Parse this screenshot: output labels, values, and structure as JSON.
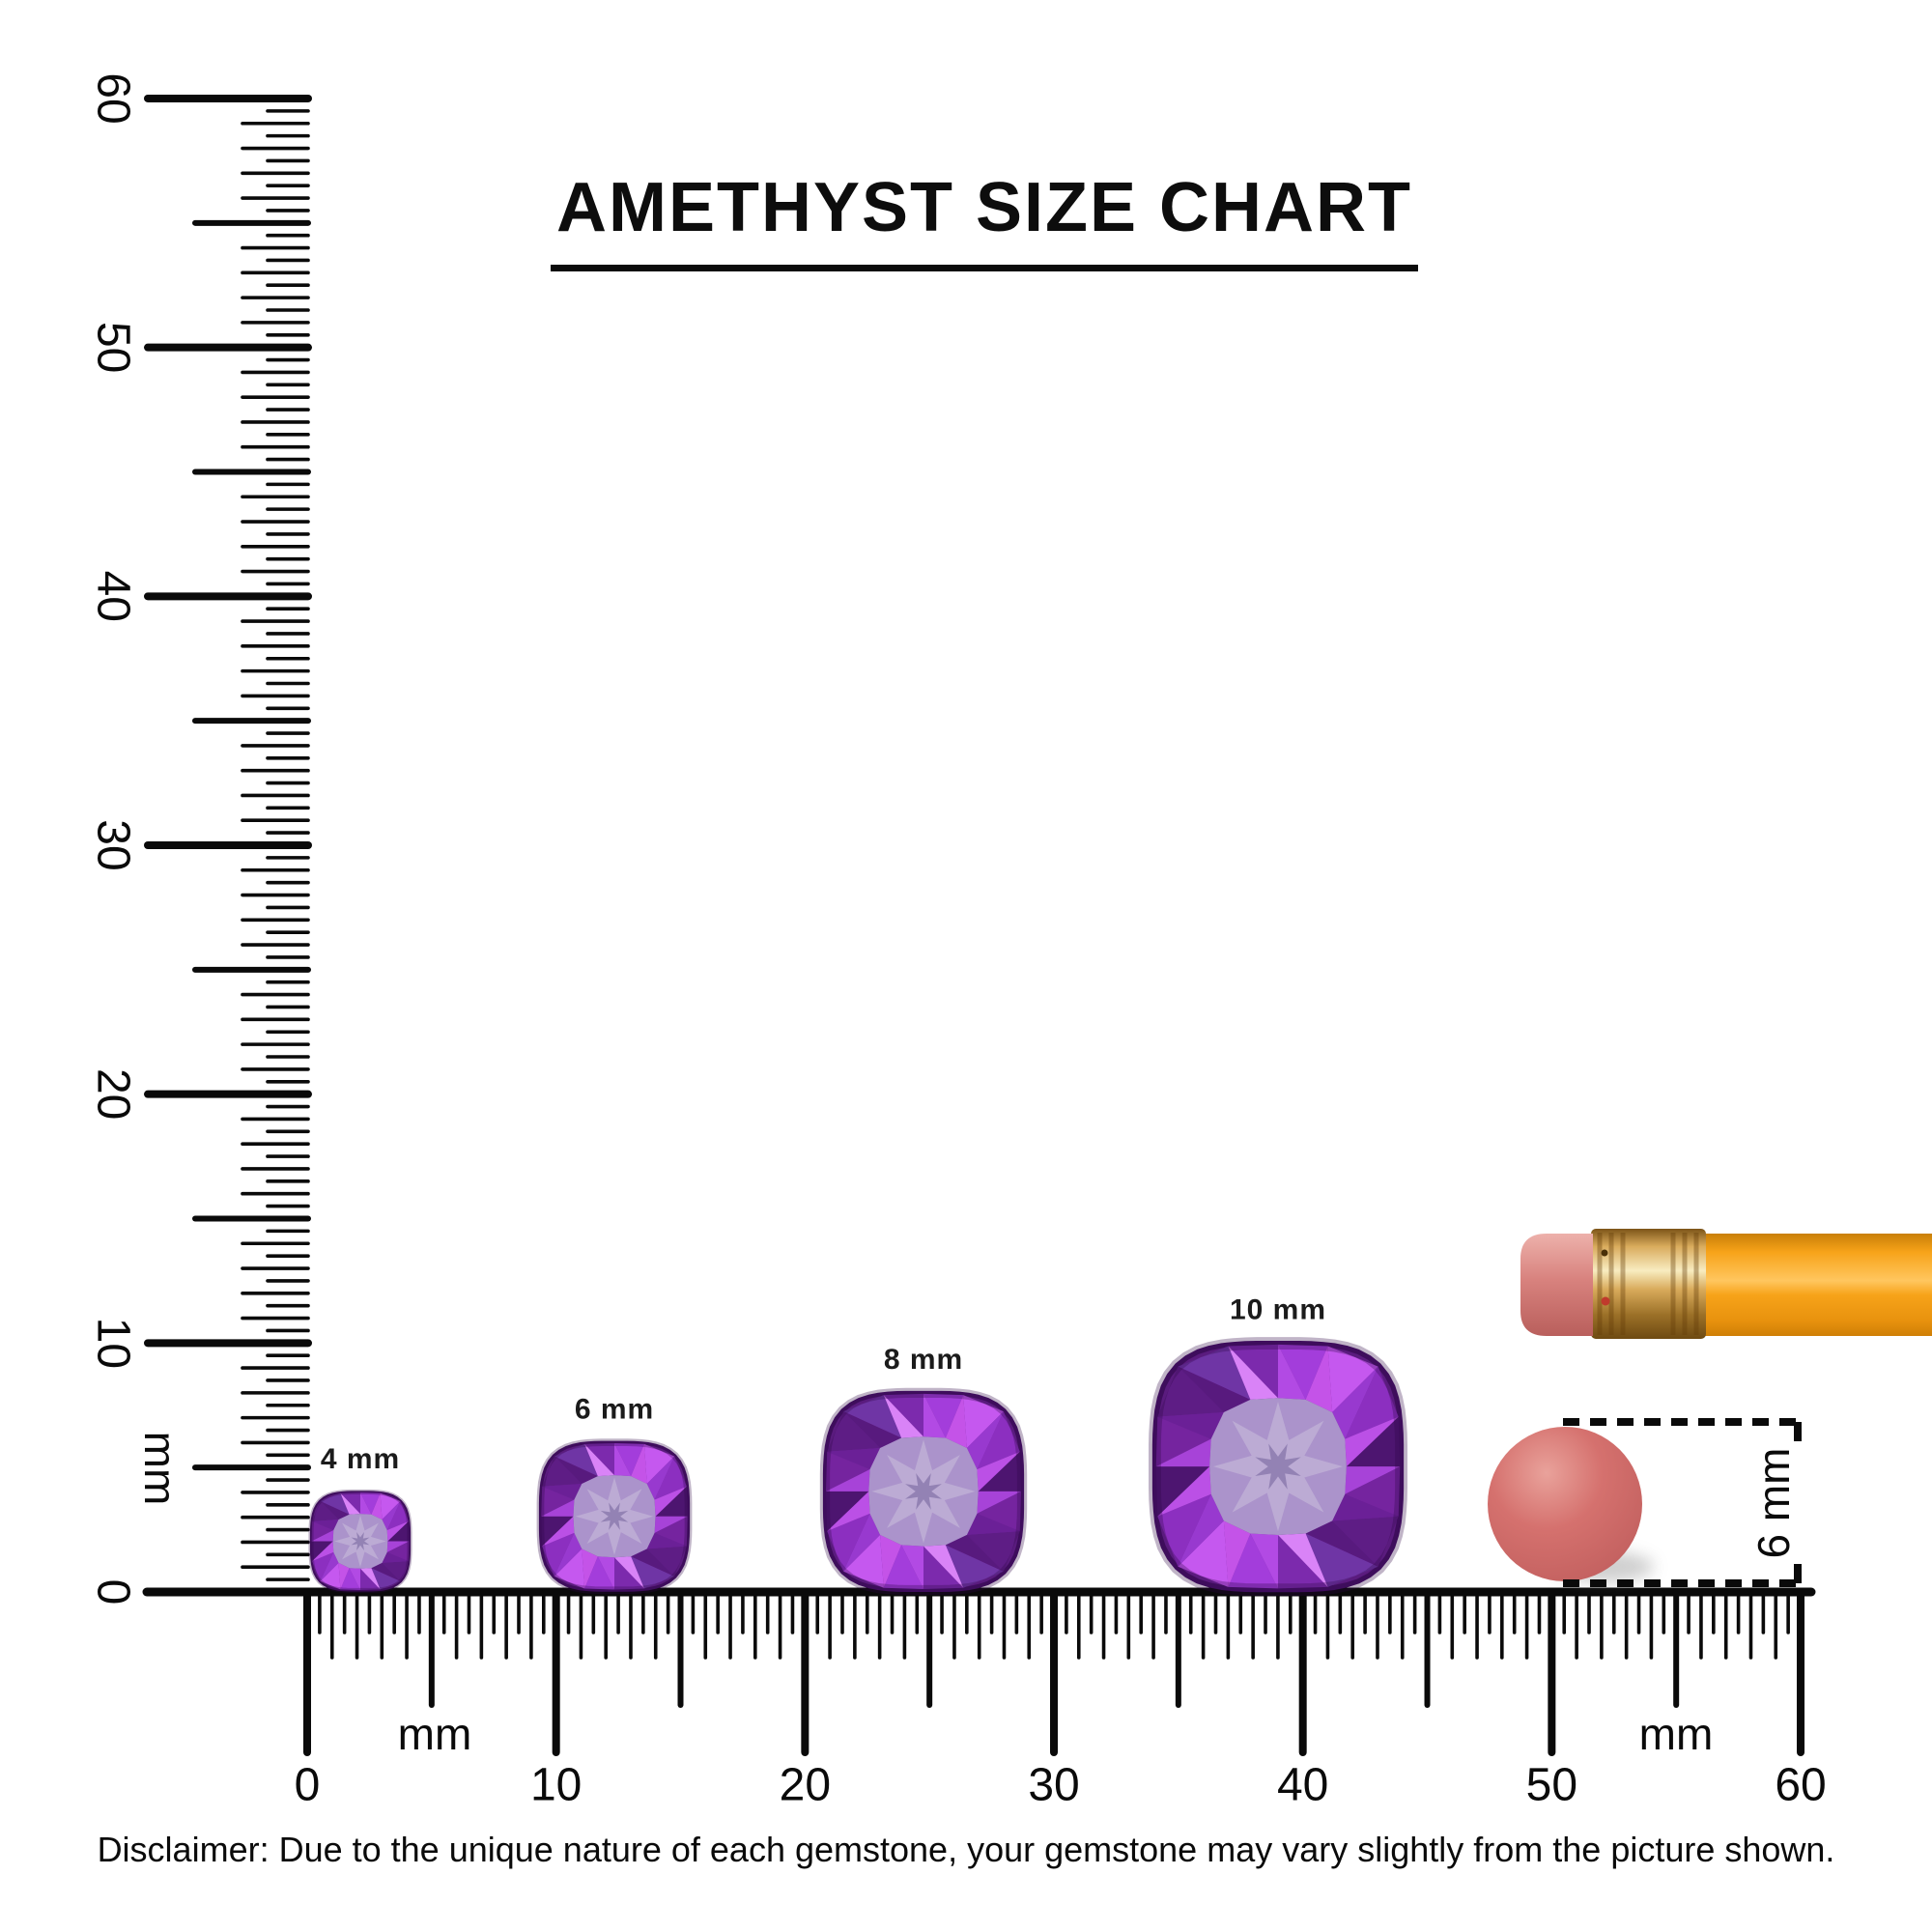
{
  "title": "AMETHYST SIZE CHART",
  "disclaimer": "Disclaimer: Due to the unique nature of each gemstone, your gemstone may vary slightly from the picture shown.",
  "rulers": {
    "vertical": {
      "unit": "mm",
      "numbers": [
        "0",
        "10",
        "20",
        "30",
        "40",
        "50",
        "60"
      ]
    },
    "horizontal": {
      "unit": "mm",
      "numbers": [
        "0",
        "10",
        "20",
        "30",
        "40",
        "50",
        "60"
      ]
    }
  },
  "gems": [
    {
      "label": "4 mm",
      "size_mm": 4
    },
    {
      "label": "6 mm",
      "size_mm": 6
    },
    {
      "label": "8 mm",
      "size_mm": 8
    },
    {
      "label": "10 mm",
      "size_mm": 10
    }
  ],
  "eraser_reference": {
    "label": "6 mm",
    "diameter_mm": 6
  },
  "colors": {
    "ink": "#0a0a0a",
    "title_text": "#0d0d0d",
    "label_text": "#1b1b1b",
    "gem_outline": "#451166",
    "gem_base": "#6e2597",
    "gem_table": "#ab93cb",
    "gem_star": "#bcabd4",
    "gem_core": "#9382b4",
    "amethyst": [
      "#a33ddb",
      "#6b2097",
      "#c558ef",
      "#581a7e",
      "#8c2fc0",
      "#d983f7",
      "#4d1570",
      "#b24ae4",
      "#75249f",
      "#c453e8",
      "#5e1d85",
      "#9839cf",
      "#6f35a5",
      "#bb50e6",
      "#7c2aad",
      "#a743d8"
    ],
    "pencil_body": [
      "#c97f08",
      "#f7a319",
      "#ffc65f",
      "#e8920e",
      "#cf7f06"
    ],
    "pencil_ferrule": [
      "#7c5418",
      "#d9ab5c",
      "#f8ecc0",
      "#9c7128",
      "#6e4a12"
    ],
    "pencil_eraser": [
      "#edb1ab",
      "#d8827e",
      "#b95f5c"
    ],
    "ferrule_dot_dark": "#4a3008",
    "ferrule_dot_red": "#c03a2c",
    "disc": [
      "#e9a29b",
      "#d5716e",
      "#c15f5e"
    ],
    "disc_shadow": "#777777"
  }
}
